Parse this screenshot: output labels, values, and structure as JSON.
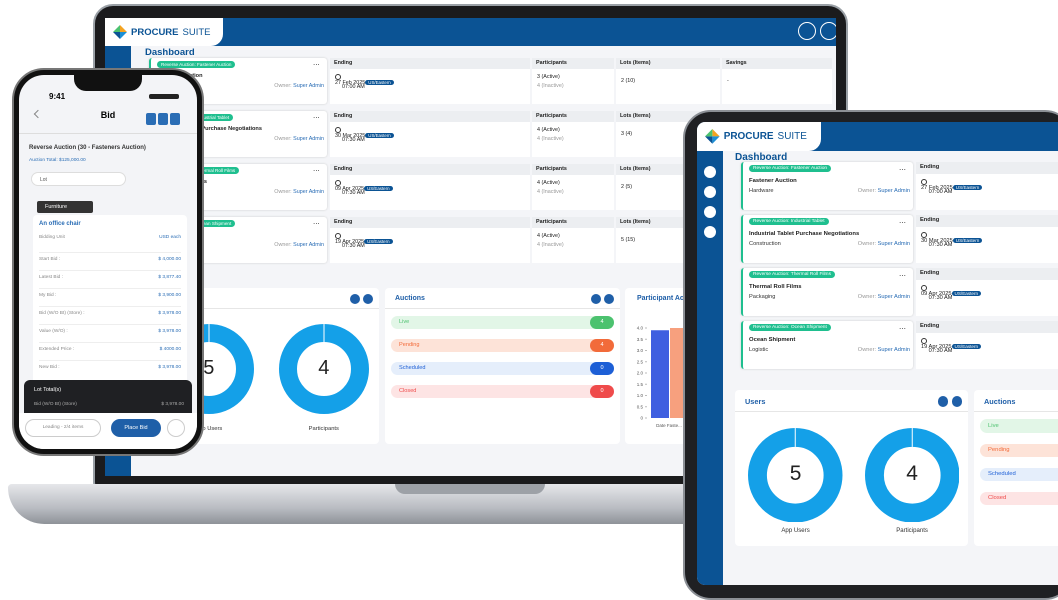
{
  "brand": {
    "name": "PROCURE",
    "suffix": "SUITE"
  },
  "dashboard": {
    "title": "Dashboard",
    "headers": {
      "ending": "Ending",
      "participants": "Participants",
      "lots": "Lots (Items)",
      "savings": "Savings"
    },
    "owner_label": "Owner:",
    "more": "...",
    "auctions": [
      {
        "tag": "Reverse Auction: Fastener Auction",
        "name": "Fastener Auction",
        "category": "Hardware",
        "owner": "Super Admin",
        "date": "27 Feb 2025",
        "timezone": "US/Eastern",
        "time": "07:00 AM",
        "active": "3 (Active)",
        "inactive": "4 (Inactive)",
        "lots": "2 (10)",
        "savings": "-"
      },
      {
        "tag": "Reverse Auction: Industrial Tablet",
        "name": "Industrial Tablet Purchase Negotiations",
        "category": "Construction",
        "owner": "Super Admin",
        "date": "30 Mar 2025",
        "timezone": "US/Eastern",
        "time": "07:30 AM",
        "active": "4 (Active)",
        "inactive": "4 (Inactive)",
        "lots": "3 (4)"
      },
      {
        "tag": "Reverse Auction: Thermal Roll Films",
        "name": "Thermal Roll Films",
        "category": "Packaging",
        "owner": "Super Admin",
        "date": "09 Apr 2025",
        "timezone": "US/Eastern",
        "time": "07:30 AM",
        "active": "4 (Active)",
        "inactive": "4 (Inactive)",
        "lots": "2 (5)"
      },
      {
        "tag": "Reverse Auction: Ocean Shipment",
        "name": "Ocean Shipment",
        "category": "Logistic",
        "owner": "Super Admin",
        "date": "19 Apr 2025",
        "timezone": "US/Eastern",
        "time": "07:30 AM",
        "active": "4 (Active)",
        "inactive": "4 (Inactive)",
        "lots": "5 (15)"
      }
    ]
  },
  "users": {
    "title": "Users",
    "donuts": [
      {
        "value": 5,
        "label": "App Users"
      },
      {
        "value": 4,
        "label": "Participants"
      }
    ]
  },
  "auction_status": {
    "title": "Auctions",
    "items": [
      {
        "label": "Live",
        "count": 4,
        "color": "#4cc26f",
        "bg": "#e2f6e7"
      },
      {
        "label": "Pending",
        "count": 4,
        "color": "#f26b3a",
        "bg": "#fde3d8"
      },
      {
        "label": "Scheduled",
        "count": 0,
        "color": "#1d5fd6",
        "bg": "#e5eefb"
      },
      {
        "label": "Closed",
        "count": 0,
        "color": "#ef4b4b",
        "bg": "#fde4e4"
      }
    ]
  },
  "participant_chart": {
    "title": "Participant Ac",
    "ylim": [
      0,
      4
    ],
    "yticks": [
      {
        "value": 4,
        "label": "4.0"
      },
      {
        "value": 3.5,
        "label": "3.5"
      },
      {
        "value": 3,
        "label": "3.0"
      },
      {
        "value": 2.5,
        "label": "2.5"
      },
      {
        "value": 2,
        "label": "2.0"
      },
      {
        "value": 1.5,
        "label": "1.5"
      },
      {
        "value": 1,
        "label": "1.0"
      },
      {
        "value": 0.5,
        "label": "0.5"
      },
      0
    ],
    "bars": [
      {
        "value": 3.9,
        "color": "#3f5fe0"
      },
      {
        "value": 4,
        "color": "#f7a07e"
      }
    ],
    "x_label": "Date Faste..."
  },
  "phone": {
    "time": "9:41",
    "title": "Bid",
    "auction": "Reverse Auction (30 - Fasteners Auction)",
    "total": "Auction Total: $125,000.00",
    "select": "Lot",
    "tab": "Furniture",
    "item": "An office chair",
    "unit_label": "Bidding Unit",
    "unit": "USD each",
    "rows": [
      [
        "Start Bid :",
        "$ 4,000.00"
      ],
      [
        "Latest Bid :",
        "$ 3,877.40"
      ],
      [
        "My Bid :",
        "$ 3,900.00"
      ],
      [
        "Bid (W/O Bt) (Store) :",
        "$ 3,978.00"
      ],
      [
        "Value (W/O) :",
        "$ 3,978.00"
      ],
      [
        "Extended Price :",
        "$ 4000.00"
      ],
      [
        "New Bid :",
        "$ 3,978.00"
      ]
    ],
    "lot_total": "Lot Total(s)",
    "lot_row": [
      "Bid (W/O Bt) (Store)",
      "$ 3,978.00"
    ],
    "leading": "Leading - 2/4 items",
    "place": "Place Bid"
  }
}
